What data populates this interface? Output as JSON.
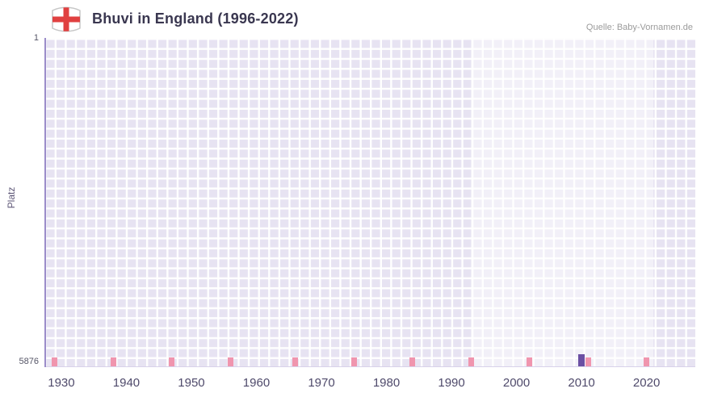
{
  "header": {
    "title": "Bhuvi in England (1996-2022)",
    "source": "Quelle: Baby-Vornamen.de"
  },
  "chart_data": {
    "type": "bar",
    "title": "Bhuvi in England (1996-2022)",
    "ylabel": "Platz",
    "y_ticks": [
      "1",
      "5876"
    ],
    "ylim_ranks": [
      1,
      5876
    ],
    "x_ticks": [
      "1930",
      "1940",
      "1950",
      "1960",
      "1970",
      "1980",
      "1990",
      "2000",
      "2010",
      "2020"
    ],
    "x_range": [
      1927.4,
      2027.5
    ],
    "points": [
      {
        "year": 2010,
        "rank": 5876
      }
    ],
    "bottom_marks_years": [
      1929,
      1938,
      1947,
      1956,
      1966,
      1975,
      1984,
      1993,
      2002,
      2011,
      2020
    ],
    "highlight_band": {
      "from": 1993,
      "to": 2021
    },
    "grid": true,
    "legend": "none",
    "colors": {
      "plot_bg": "#e7e3f2",
      "grid_line": "#ffffff",
      "band": "rgba(255,255,255,0.45)",
      "bar": "#6b4fa3",
      "mark": "#f095ae",
      "axis_line": "#9b8cc9",
      "tick_label": "#4f4a6b",
      "title_color": "#3a3750",
      "source_color": "#9b9b9b",
      "flag_cross": "#e04040"
    }
  }
}
